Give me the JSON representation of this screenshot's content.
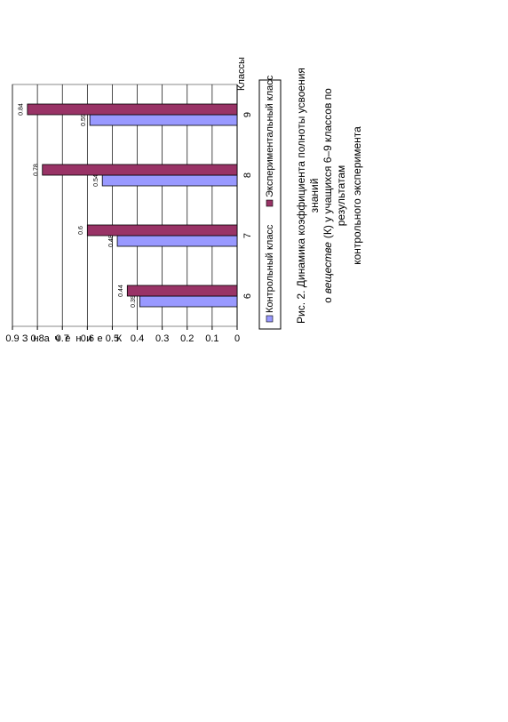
{
  "chart_data": {
    "type": "bar",
    "orientation": "horizontal",
    "categories": [
      "6",
      "7",
      "8",
      "9"
    ],
    "series": [
      {
        "name": "Контрольный класс",
        "color": "#9999ff",
        "values": [
          0.39,
          0.48,
          0.54,
          0.59
        ]
      },
      {
        "name": "Экспериментальный класс",
        "color": "#993366",
        "values": [
          0.44,
          0.6,
          0.78,
          0.84
        ]
      }
    ],
    "xlabel": "Классы",
    "ylabel": "Значение К",
    "ylim": [
      0,
      0.9
    ],
    "yticks": [
      0,
      0.1,
      0.2,
      0.3,
      0.4,
      0.5,
      0.6,
      0.7,
      0.8,
      0.9
    ],
    "grid": true
  },
  "caption": {
    "line1": "Рис. 2. Динамика коэффициента полноты усвоения",
    "line2": "знаний",
    "line3": [
      "о",
      "веществе",
      "(К) у учащихся 6–9 классов по"
    ],
    "line4": "результатам",
    "line5": "контрольного эксперимента"
  }
}
